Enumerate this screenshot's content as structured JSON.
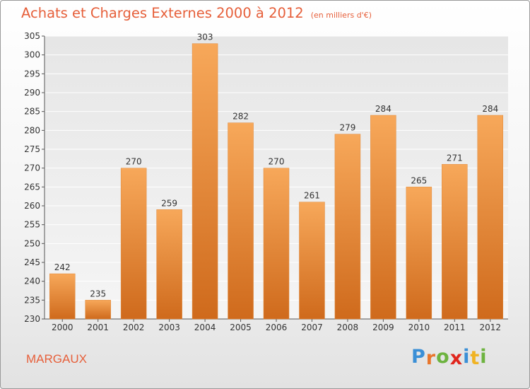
{
  "title": "Achats et Charges Externes 2000 à 2012",
  "unit": "(en milliers d'€)",
  "city": "MARGAUX",
  "brand": {
    "letters": [
      "P",
      "r",
      "o",
      "x",
      "i",
      "t",
      "i"
    ],
    "colors": [
      "#3a8fd6",
      "#e8762c",
      "#6db33f",
      "#e0261d",
      "#3a8fd6",
      "#f0b323",
      "#6db33f"
    ]
  },
  "colors": {
    "accent": "#e65f3a",
    "bar_top": "#f7a85a",
    "bar_bottom": "#cf6a1c"
  },
  "chart_data": {
    "type": "bar",
    "categories": [
      "2000",
      "2001",
      "2002",
      "2003",
      "2004",
      "2005",
      "2006",
      "2007",
      "2008",
      "2009",
      "2010",
      "2011",
      "2012"
    ],
    "values": [
      242,
      235,
      270,
      259,
      303,
      282,
      270,
      261,
      279,
      284,
      265,
      271,
      284
    ],
    "title": "Achats et Charges Externes 2000 à 2012",
    "xlabel": "",
    "ylabel": "",
    "ylim": [
      230,
      305
    ],
    "yticks": [
      230,
      235,
      240,
      245,
      250,
      255,
      260,
      265,
      270,
      275,
      280,
      285,
      290,
      295,
      300,
      305
    ],
    "grid": true,
    "legend": "none"
  }
}
